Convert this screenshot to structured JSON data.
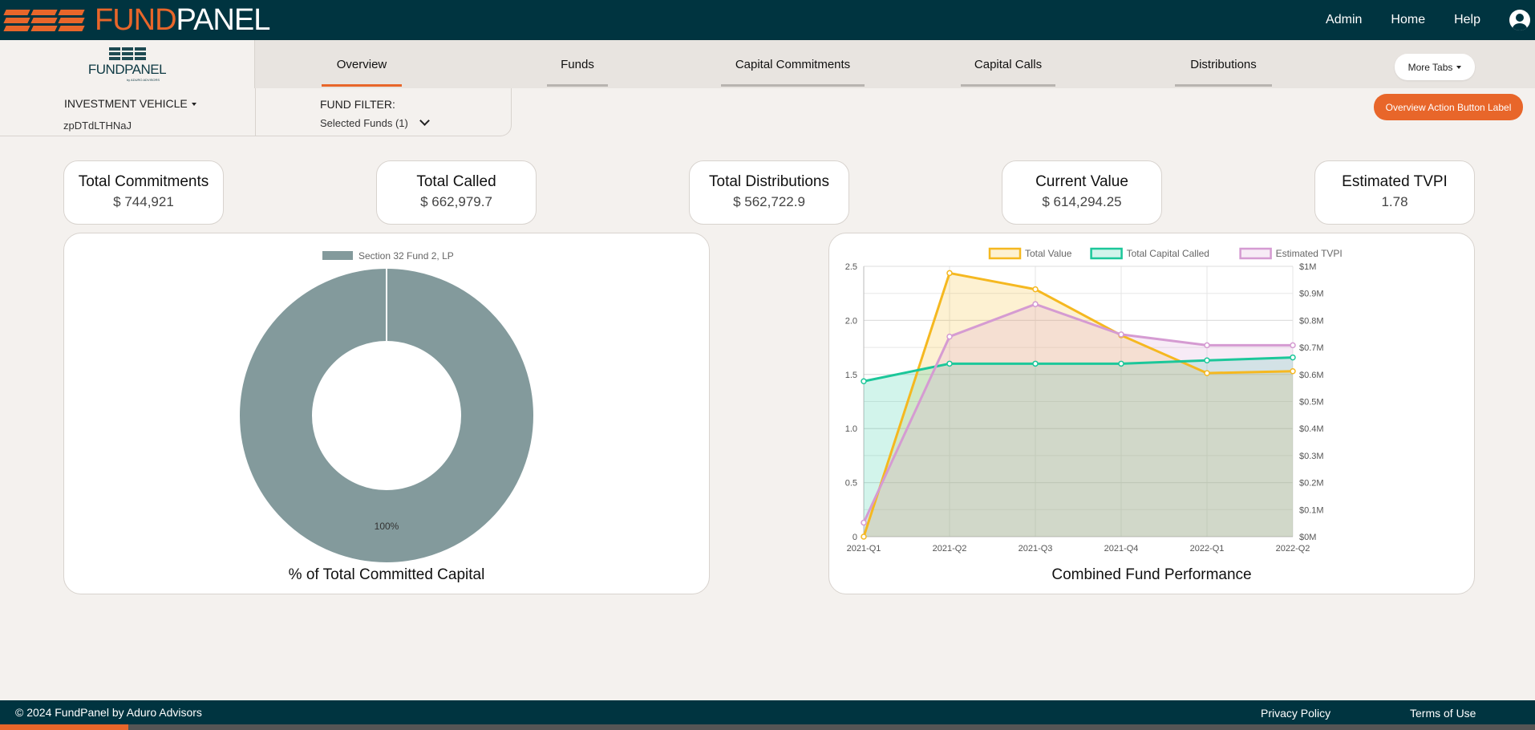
{
  "header": {
    "logo_left": "FUND",
    "logo_right": "PANEL",
    "nav": [
      "Admin",
      "Home",
      "Help"
    ]
  },
  "sidebar_logo": {
    "word_left": "FUND",
    "word_right": "PANEL",
    "sub": "by ADURO ADVISORS"
  },
  "tabs": [
    {
      "label": "Overview",
      "active": true
    },
    {
      "label": "Funds"
    },
    {
      "label": "Capital Commitments"
    },
    {
      "label": "Capital Calls"
    },
    {
      "label": "Distributions"
    }
  ],
  "more_tabs_label": "More Tabs",
  "filters": {
    "investment_vehicle_label": "INVESTMENT VEHICLE",
    "investment_vehicle_value": "zpDTdLTHNaJ",
    "fund_filter_label": "FUND FILTER:",
    "fund_filter_value": "Selected Funds (1)"
  },
  "action_button_label": "Overview Action Button Label",
  "kpis": [
    {
      "title": "Total Commitments",
      "value": "$ 744,921"
    },
    {
      "title": "Total Called",
      "value": "$ 662,979.7"
    },
    {
      "title": "Total Distributions",
      "value": "$ 562,722.9"
    },
    {
      "title": "Current Value",
      "value": "$ 614,294.25"
    },
    {
      "title": "Estimated TVPI",
      "value": "1.78"
    }
  ],
  "chart_data": [
    {
      "type": "pie",
      "title": "% of Total Committed Capital",
      "legend": "top",
      "categories": [
        "Section 32 Fund 2, LP"
      ],
      "values": [
        100
      ],
      "data_labels": [
        "100%"
      ],
      "colors": [
        "#839a9c"
      ]
    },
    {
      "type": "line",
      "title": "Combined Fund Performance",
      "legend": "top",
      "x": [
        "2021-Q1",
        "2021-Q2",
        "2021-Q3",
        "2021-Q4",
        "2022-Q1",
        "2022-Q2"
      ],
      "y_left_ticks": [
        "0",
        "0.5",
        "1.0",
        "1.5",
        "2.0",
        "2.5"
      ],
      "y_left_range": [
        0,
        2.5
      ],
      "y_right_ticks": [
        "$0M",
        "$0.1M",
        "$0.2M",
        "$0.3M",
        "$0.4M",
        "$0.5M",
        "$0.6M",
        "$0.7M",
        "$0.8M",
        "$0.9M",
        "$1M"
      ],
      "y_right_range": [
        0,
        1000000
      ],
      "grid": true,
      "series": [
        {
          "name": "Total Value",
          "axis": "right",
          "color": "#f5b820",
          "fill": "rgba(245,184,32,0.2)",
          "values": [
            0,
            975000,
            915000,
            745000,
            605000,
            612000
          ]
        },
        {
          "name": "Total Capital Called",
          "axis": "right",
          "color": "#1cc79a",
          "fill": "rgba(28,199,154,0.2)",
          "values": [
            575000,
            640000,
            640000,
            640000,
            652000,
            662979.7
          ]
        },
        {
          "name": "Estimated TVPI",
          "axis": "left",
          "color": "#d59bd2",
          "fill": "rgba(213,155,210,0.2)",
          "values": [
            0.13,
            1.85,
            2.15,
            1.87,
            1.77,
            1.77
          ]
        }
      ]
    }
  ],
  "footer": {
    "copyright": "© 2024 FundPanel by Aduro Advisors",
    "privacy": "Privacy Policy",
    "terms": "Terms of Use"
  }
}
